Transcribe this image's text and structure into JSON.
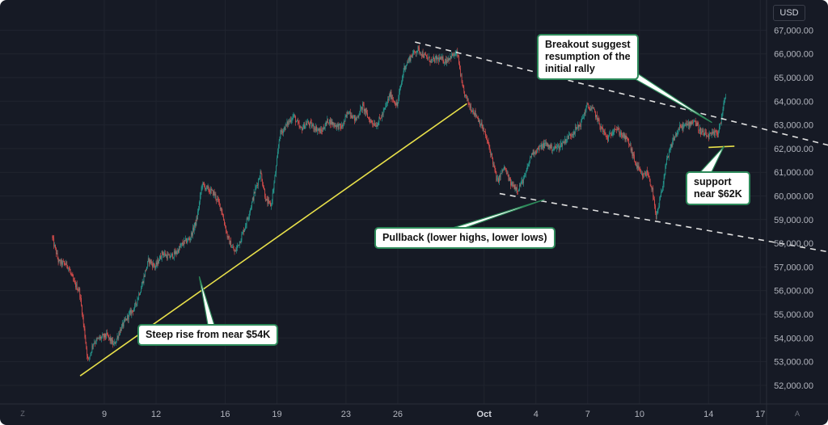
{
  "chart_data": {
    "type": "candlestick",
    "currency": "USD",
    "y_axis": {
      "range": [
        51500,
        67500
      ],
      "ticks": [
        "52,000.00",
        "53,000.00",
        "54,000.00",
        "55,000.00",
        "56,000.00",
        "57,000.00",
        "58,000.00",
        "59,000.00",
        "60,000.00",
        "61,000.00",
        "62,000.00",
        "63,000.00",
        "64,000.00",
        "65,000.00",
        "66,000.00",
        "67,000.00"
      ],
      "tick_values": [
        52000,
        53000,
        54000,
        55000,
        56000,
        57000,
        58000,
        59000,
        60000,
        61000,
        62000,
        63000,
        64000,
        65000,
        66000,
        67000
      ]
    },
    "x_axis": {
      "ticks": [
        "9",
        "12",
        "16",
        "19",
        "23",
        "26",
        "Oct",
        "4",
        "7",
        "10",
        "14",
        "17"
      ],
      "tick_days": [
        9,
        12,
        16,
        19,
        23,
        26,
        31,
        34,
        37,
        40,
        44,
        47
      ]
    },
    "grid": true,
    "price_path": [
      [
        6.0,
        58300
      ],
      [
        6.4,
        57200
      ],
      [
        6.9,
        57100
      ],
      [
        7.3,
        56300
      ],
      [
        7.6,
        56000
      ],
      [
        7.9,
        54200
      ],
      [
        8.1,
        53000
      ],
      [
        8.4,
        53800
      ],
      [
        8.8,
        54000
      ],
      [
        9.2,
        54100
      ],
      [
        9.6,
        53700
      ],
      [
        10.0,
        54400
      ],
      [
        10.4,
        54900
      ],
      [
        10.8,
        55300
      ],
      [
        11.2,
        56200
      ],
      [
        11.6,
        57300
      ],
      [
        12.0,
        57000
      ],
      [
        12.4,
        57600
      ],
      [
        12.8,
        57400
      ],
      [
        13.2,
        57600
      ],
      [
        13.6,
        58000
      ],
      [
        14.0,
        58200
      ],
      [
        14.4,
        59000
      ],
      [
        14.7,
        60500
      ],
      [
        15.0,
        60300
      ],
      [
        15.4,
        60100
      ],
      [
        15.8,
        59500
      ],
      [
        16.2,
        58200
      ],
      [
        16.6,
        57600
      ],
      [
        17.0,
        58300
      ],
      [
        17.4,
        59200
      ],
      [
        17.8,
        60300
      ],
      [
        18.1,
        61000
      ],
      [
        18.4,
        59800
      ],
      [
        18.7,
        59600
      ],
      [
        19.0,
        61200
      ],
      [
        19.2,
        62600
      ],
      [
        19.6,
        63000
      ],
      [
        20.0,
        63400
      ],
      [
        20.4,
        62800
      ],
      [
        20.8,
        63100
      ],
      [
        21.2,
        62900
      ],
      [
        21.6,
        62700
      ],
      [
        22.0,
        63200
      ],
      [
        22.4,
        63000
      ],
      [
        22.8,
        62900
      ],
      [
        23.2,
        63600
      ],
      [
        23.6,
        63200
      ],
      [
        24.0,
        63800
      ],
      [
        24.4,
        63200
      ],
      [
        24.8,
        63000
      ],
      [
        25.2,
        63500
      ],
      [
        25.6,
        64300
      ],
      [
        26.0,
        63800
      ],
      [
        26.4,
        65400
      ],
      [
        26.8,
        65900
      ],
      [
        27.2,
        66200
      ],
      [
        27.6,
        65900
      ],
      [
        28.0,
        65700
      ],
      [
        28.4,
        65800
      ],
      [
        28.8,
        65700
      ],
      [
        29.1,
        65900
      ],
      [
        29.5,
        66000
      ],
      [
        29.8,
        64500
      ],
      [
        30.2,
        63800
      ],
      [
        30.6,
        63400
      ],
      [
        31.0,
        62800
      ],
      [
        31.4,
        61900
      ],
      [
        31.8,
        60600
      ],
      [
        32.2,
        61200
      ],
      [
        32.6,
        60500
      ],
      [
        33.0,
        60300
      ],
      [
        33.4,
        60800
      ],
      [
        33.8,
        61800
      ],
      [
        34.2,
        62000
      ],
      [
        34.6,
        62200
      ],
      [
        35.0,
        62000
      ],
      [
        35.4,
        62100
      ],
      [
        35.8,
        62400
      ],
      [
        36.2,
        62700
      ],
      [
        36.6,
        63000
      ],
      [
        37.0,
        63800
      ],
      [
        37.4,
        63600
      ],
      [
        37.8,
        62900
      ],
      [
        38.2,
        62400
      ],
      [
        38.6,
        62900
      ],
      [
        39.0,
        62600
      ],
      [
        39.4,
        62300
      ],
      [
        39.8,
        61400
      ],
      [
        40.2,
        60800
      ],
      [
        40.5,
        61000
      ],
      [
        40.8,
        60200
      ],
      [
        41.0,
        59000
      ],
      [
        41.3,
        60100
      ],
      [
        41.6,
        61400
      ],
      [
        42.0,
        62400
      ],
      [
        42.4,
        62900
      ],
      [
        42.8,
        63000
      ],
      [
        43.2,
        63200
      ],
      [
        43.6,
        62700
      ],
      [
        44.0,
        62500
      ],
      [
        44.3,
        62600
      ],
      [
        44.6,
        62700
      ],
      [
        44.8,
        63300
      ],
      [
        45.0,
        64200
      ]
    ],
    "trendlines": [
      {
        "style": "solid",
        "color": "#e8e04a",
        "points": [
          [
            7.6,
            52400
          ],
          [
            30.0,
            63900
          ]
        ]
      },
      {
        "style": "dashed",
        "color": "#e0e0e0",
        "points": [
          [
            27.0,
            66500
          ],
          [
            52.0,
            61950
          ]
        ]
      },
      {
        "style": "dashed",
        "color": "#e0e0e0",
        "points": [
          [
            31.9,
            60100
          ],
          [
            52.0,
            57500
          ]
        ]
      },
      {
        "style": "solid",
        "color": "#e8e04a",
        "points": [
          [
            44.0,
            62050
          ],
          [
            45.5,
            62100
          ]
        ]
      }
    ],
    "annotations": [
      {
        "text": "Steep rise from near $54K",
        "target": [
          14.5,
          56600
        ]
      },
      {
        "text": "Pullback (lower highs, lower lows)",
        "target": [
          34.5,
          59850
        ]
      },
      {
        "text": "Breakout suggest resumption of the initial rally",
        "target": [
          44.2,
          63100
        ]
      },
      {
        "text": "support near $62K",
        "target": [
          44.9,
          62100
        ]
      }
    ]
  },
  "callouts": {
    "steep": "Steep rise from near $54K",
    "pullback": "Pullback (lower highs, lower lows)",
    "breakout": [
      "Breakout suggest",
      "resumption of the",
      "initial rally"
    ],
    "support": [
      "support",
      "near $62K"
    ]
  },
  "currency_label": "USD",
  "corner_left": "Z",
  "corner_right": "A",
  "colors": {
    "up": "#26a69a",
    "down": "#ef5350",
    "background": "#161a25",
    "grid": "#222633",
    "callout_border": "#2d8a5a"
  }
}
